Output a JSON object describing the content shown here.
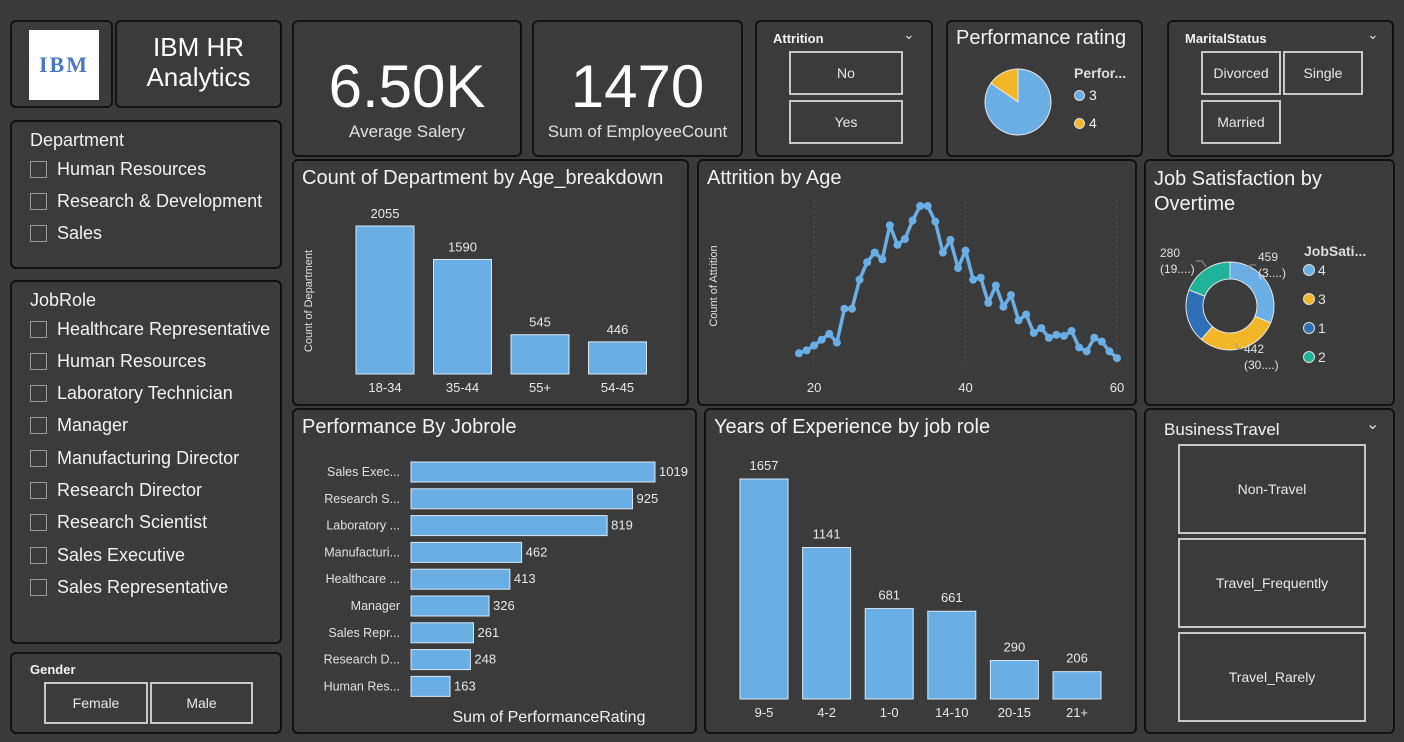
{
  "logo": {
    "text": "IBM"
  },
  "header": {
    "title_line1": "IBM HR",
    "title_line2": "Analytics"
  },
  "kpis": [
    {
      "value": "6.50K",
      "label": "Average Salery"
    },
    {
      "value": "1470",
      "label": "Sum of EmployeeCount"
    }
  ],
  "attrition_filter": {
    "title": "Attrition",
    "options": [
      "No",
      "Yes"
    ]
  },
  "performance_rating": {
    "title": "Performance rating",
    "legend_title": "Perfor...",
    "legend": [
      {
        "label": "3",
        "color": "#6aaee6"
      },
      {
        "label": "4",
        "color": "#f2b728"
      }
    ]
  },
  "marital_filter": {
    "title": "MaritalStatus",
    "options": [
      "Divorced",
      "Single",
      "Married"
    ]
  },
  "department_filter": {
    "title": "Department",
    "items": [
      "Human Resources",
      "Research & Development",
      "Sales"
    ]
  },
  "jobrole_filter": {
    "title": "JobRole",
    "items": [
      "Healthcare Representative",
      "Human Resources",
      "Laboratory Technician",
      "Manager",
      "Manufacturing Director",
      "Research Director",
      "Research Scientist",
      "Sales Executive",
      "Sales Representative"
    ]
  },
  "gender_filter": {
    "title": "Gender",
    "options": [
      "Female",
      "Male"
    ]
  },
  "business_travel_filter": {
    "title": "BusinessTravel",
    "options": [
      "Non-Travel",
      "Travel_Frequently",
      "Travel_Rarely"
    ]
  },
  "chart_data": [
    {
      "id": "dept_by_age",
      "type": "bar",
      "title": "Count of Department by Age_breakdown",
      "ylabel": "Count of Department",
      "categories": [
        "18-34",
        "35-44",
        "55+",
        "54-45"
      ],
      "values": [
        2055,
        1590,
        545,
        446
      ],
      "color": "#6aaee6"
    },
    {
      "id": "attrition_by_age",
      "type": "line",
      "title": "Attrition by Age",
      "ylabel": "Count of Attrition",
      "xticks": [
        20,
        40,
        60
      ],
      "xlim": [
        18,
        60
      ],
      "ylim": [
        0,
        160
      ],
      "x": [
        18,
        19,
        20,
        21,
        22,
        23,
        24,
        25,
        26,
        27,
        28,
        29,
        30,
        31,
        32,
        33,
        34,
        35,
        36,
        37,
        38,
        39,
        40,
        41,
        42,
        43,
        44,
        45,
        46,
        47,
        48,
        49,
        50,
        51,
        52,
        53,
        54,
        55,
        56,
        57,
        58,
        59,
        60
      ],
      "y": [
        8,
        11,
        16,
        22,
        28,
        19,
        54,
        54,
        84,
        102,
        112,
        105,
        140,
        120,
        126,
        145,
        160,
        160,
        144,
        112,
        125,
        96,
        114,
        84,
        86,
        60,
        78,
        56,
        68,
        42,
        48,
        29,
        34,
        24,
        27,
        26,
        31,
        14,
        10,
        24,
        20,
        10,
        3
      ],
      "color": "#6aaee6"
    },
    {
      "id": "job_sat_overtime",
      "type": "pie",
      "donut": true,
      "title": "Job Satisfaction by Overtime",
      "legend_title": "JobSati...",
      "slices": [
        {
          "label": "4",
          "value": 459,
          "color": "#6aaee6"
        },
        {
          "label": "3",
          "value": 442,
          "color": "#f2b728"
        },
        {
          "label": "1",
          "value": 289,
          "color": "#2f6fb8"
        },
        {
          "label": "2",
          "value": 280,
          "color": "#1fb39a"
        }
      ],
      "data_labels": [
        {
          "value": "459",
          "pct": "(3....)"
        },
        {
          "value": "442",
          "pct": "(30....)"
        },
        {
          "value": "280",
          "pct": "(19....)"
        }
      ]
    },
    {
      "id": "performance_pie",
      "type": "pie",
      "title": "Performance rating",
      "slices": [
        {
          "label": "3",
          "value": 1244,
          "color": "#6aaee6"
        },
        {
          "label": "4",
          "value": 226,
          "color": "#f2b728"
        }
      ]
    },
    {
      "id": "performance_by_jobrole",
      "type": "bar",
      "orientation": "horizontal",
      "title": "Performance By Jobrole",
      "xlabel": "Sum of PerformanceRating",
      "categories": [
        "Sales Exec...",
        "Research S...",
        "Laboratory ...",
        "Manufacturi...",
        "Healthcare ...",
        "Manager",
        "Sales Repr...",
        "Research D...",
        "Human Res..."
      ],
      "values": [
        1019,
        925,
        819,
        462,
        413,
        326,
        261,
        248,
        163
      ],
      "color": "#6aaee6"
    },
    {
      "id": "experience_by_jobrole",
      "type": "bar",
      "title": "Years of Experience by job role",
      "categories": [
        "9-5",
        "4-2",
        "1-0",
        "14-10",
        "20-15",
        "21+"
      ],
      "values": [
        1657,
        1141,
        681,
        661,
        290,
        206
      ],
      "color": "#6aaee6"
    }
  ]
}
